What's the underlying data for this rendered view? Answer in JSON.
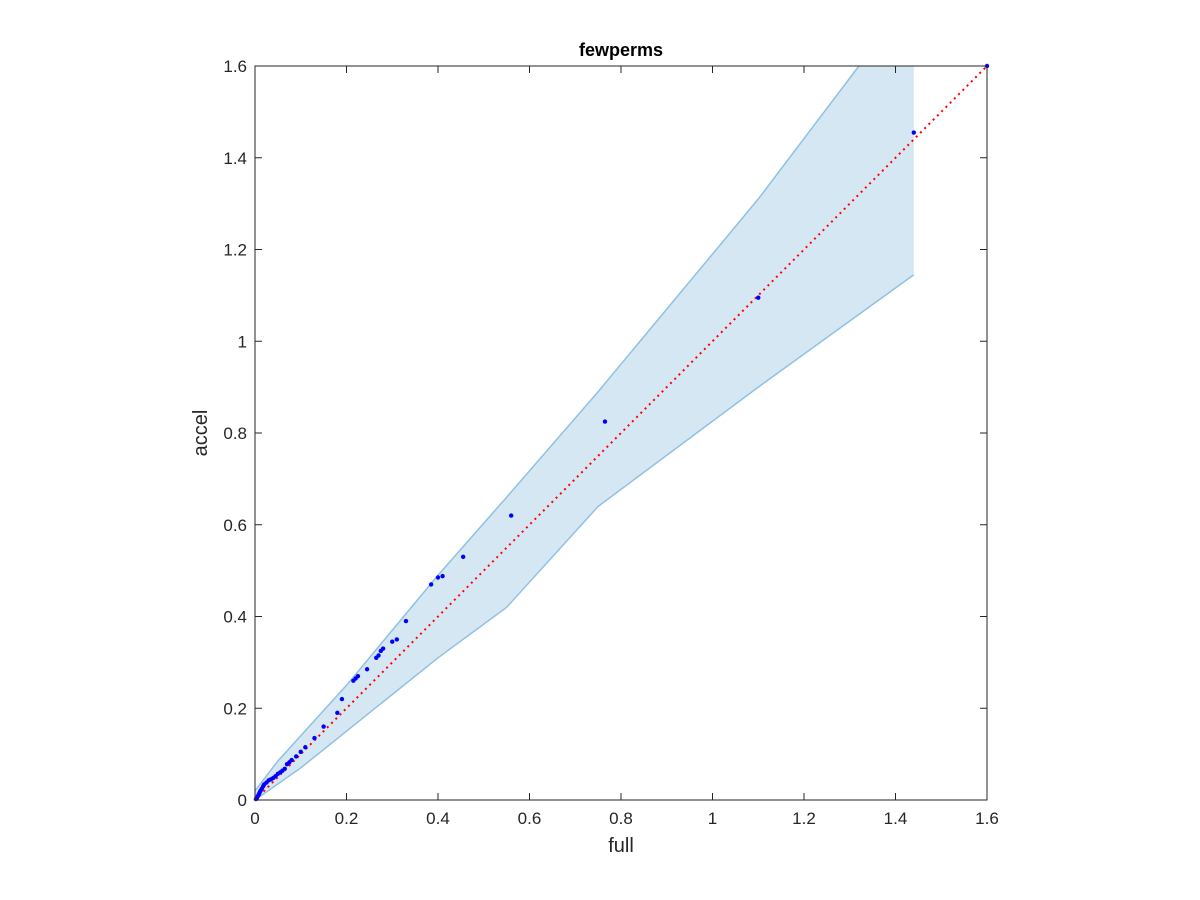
{
  "chart_data": {
    "type": "scatter",
    "title": "fewperms",
    "xlabel": "full",
    "ylabel": "accel",
    "xlim": [
      0,
      1.6
    ],
    "ylim": [
      0,
      1.6
    ],
    "xticks": [
      "0",
      "0.2",
      "0.4",
      "0.6",
      "0.8",
      "1",
      "1.2",
      "1.4",
      "1.6"
    ],
    "yticks": [
      "0",
      "0.2",
      "0.4",
      "0.6",
      "0.8",
      "1",
      "1.2",
      "1.4",
      "1.6"
    ],
    "grid": false,
    "colors": {
      "points": "#0000ff",
      "reference_line": "#ff0000",
      "band_fill": "#d6e7f4",
      "band_edge": "#8fc1e3",
      "axes": "#262626"
    },
    "reference_line": {
      "style": "dotted",
      "points": [
        [
          0,
          0
        ],
        [
          1.6,
          1.6
        ]
      ]
    },
    "band": {
      "upper": [
        [
          0,
          0.02
        ],
        [
          0.05,
          0.085
        ],
        [
          0.1,
          0.14
        ],
        [
          0.2,
          0.25
        ],
        [
          0.3,
          0.37
        ],
        [
          0.4,
          0.49
        ],
        [
          0.55,
          0.66
        ],
        [
          0.75,
          0.89
        ],
        [
          1.1,
          1.31
        ],
        [
          1.32,
          1.6
        ],
        [
          1.44,
          1.6
        ]
      ],
      "lower": [
        [
          0,
          0.0
        ],
        [
          0.05,
          0.035
        ],
        [
          0.1,
          0.07
        ],
        [
          0.2,
          0.15
        ],
        [
          0.3,
          0.23
        ],
        [
          0.4,
          0.31
        ],
        [
          0.55,
          0.42
        ],
        [
          0.75,
          0.64
        ],
        [
          1.1,
          0.9
        ],
        [
          1.44,
          1.145
        ]
      ]
    },
    "series": [
      {
        "points": [
          [
            0.002,
            0.002
          ],
          [
            0.004,
            0.004
          ],
          [
            0.006,
            0.008
          ],
          [
            0.008,
            0.012
          ],
          [
            0.01,
            0.016
          ],
          [
            0.012,
            0.02
          ],
          [
            0.015,
            0.025
          ],
          [
            0.018,
            0.03
          ],
          [
            0.02,
            0.034
          ],
          [
            0.025,
            0.038
          ],
          [
            0.03,
            0.043
          ],
          [
            0.035,
            0.045
          ],
          [
            0.04,
            0.048
          ],
          [
            0.045,
            0.052
          ],
          [
            0.05,
            0.057
          ],
          [
            0.055,
            0.06
          ],
          [
            0.06,
            0.064
          ],
          [
            0.065,
            0.068
          ],
          [
            0.07,
            0.078
          ],
          [
            0.075,
            0.082
          ],
          [
            0.08,
            0.087
          ],
          [
            0.09,
            0.095
          ],
          [
            0.1,
            0.105
          ],
          [
            0.11,
            0.115
          ],
          [
            0.13,
            0.135
          ],
          [
            0.15,
            0.16
          ],
          [
            0.18,
            0.19
          ],
          [
            0.19,
            0.22
          ],
          [
            0.215,
            0.26
          ],
          [
            0.22,
            0.265
          ],
          [
            0.225,
            0.27
          ],
          [
            0.245,
            0.285
          ],
          [
            0.265,
            0.31
          ],
          [
            0.27,
            0.315
          ],
          [
            0.275,
            0.325
          ],
          [
            0.28,
            0.33
          ],
          [
            0.3,
            0.345
          ],
          [
            0.31,
            0.35
          ],
          [
            0.33,
            0.39
          ],
          [
            0.385,
            0.47
          ],
          [
            0.4,
            0.485
          ],
          [
            0.41,
            0.488
          ],
          [
            0.455,
            0.53
          ],
          [
            0.56,
            0.62
          ],
          [
            0.765,
            0.825
          ],
          [
            1.1,
            1.095
          ],
          [
            1.44,
            1.455
          ],
          [
            1.6,
            1.6
          ]
        ]
      }
    ]
  }
}
